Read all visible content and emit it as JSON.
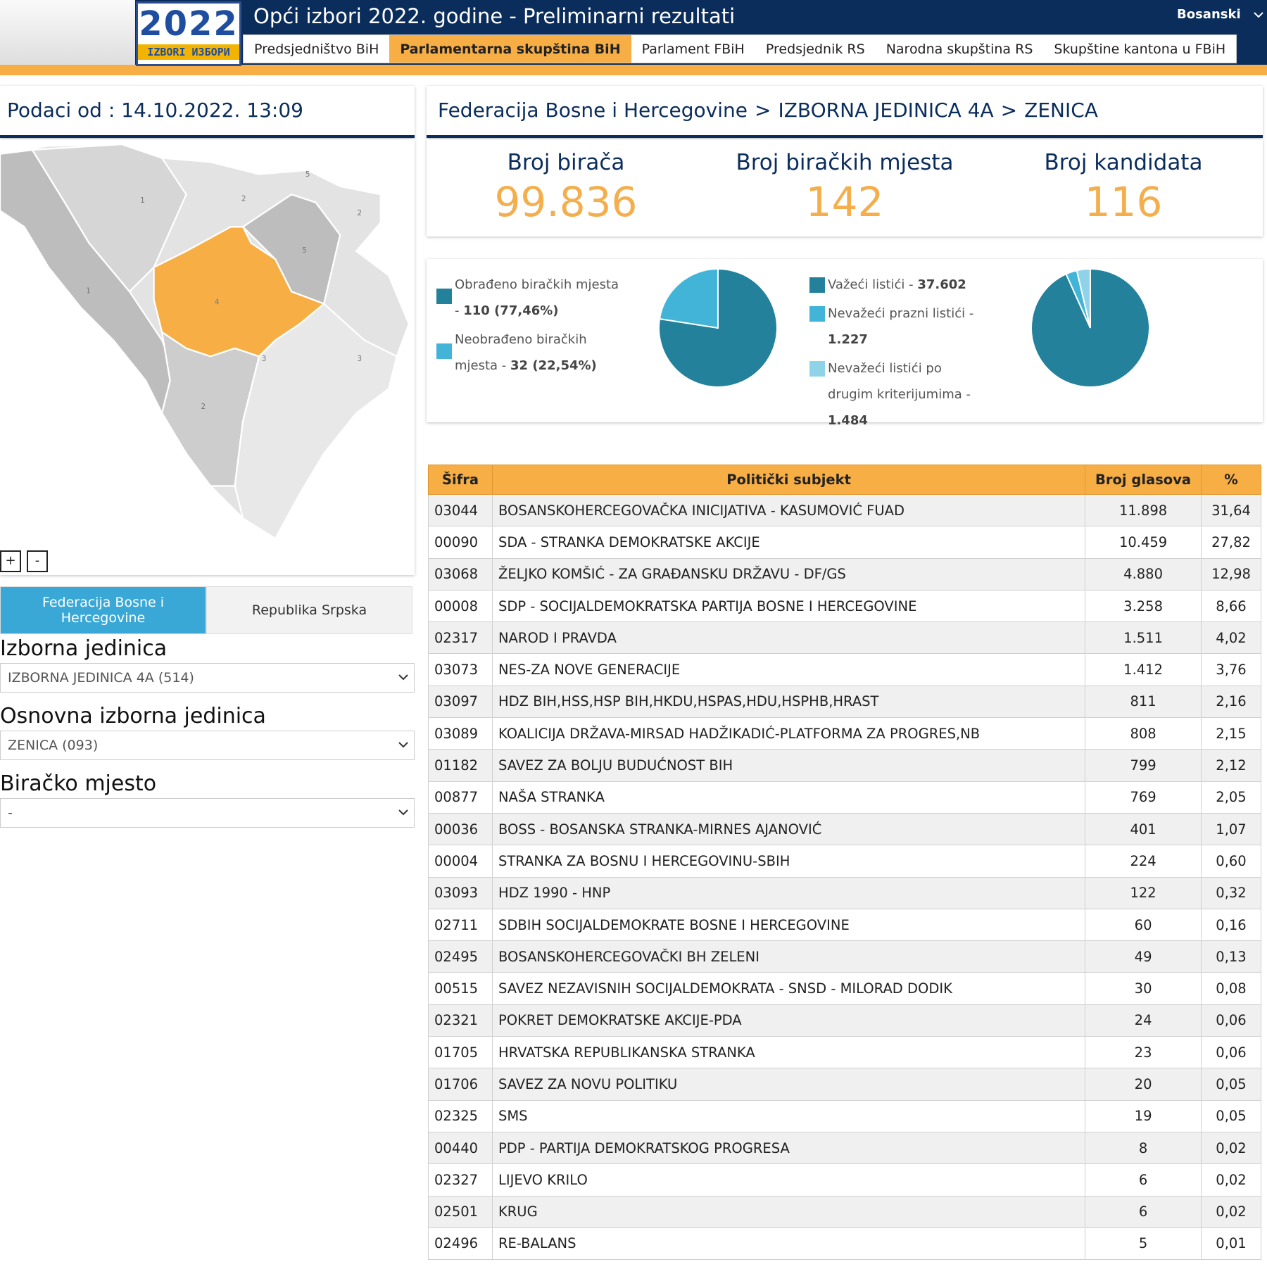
{
  "header": {
    "logo": {
      "year": "2022",
      "caption": "IZBORI ИЗБОРИ"
    },
    "title": "Opći izbori 2022. godine - Preliminarni rezultati",
    "language": "Bosanski",
    "tabs": [
      "Predsjedništvo BiH",
      "Parlamentarna skupština BiH",
      "Parlament FBiH",
      "Predsjednik RS",
      "Narodna skupština RS",
      "Skupštine kantona u FBiH"
    ],
    "active_tab": 1
  },
  "sidebar": {
    "timestamp": "Podaci od : 14.10.2022. 13:09",
    "map": {
      "labels": [
        "1",
        "2",
        "2",
        "5",
        "1",
        "4",
        "3",
        "3",
        "2",
        "5"
      ],
      "zoom_in": "+",
      "zoom_out": "-"
    },
    "entities": [
      "Federacija Bosne i Hercegovine",
      "Republika Srpska"
    ],
    "active_entity": 0,
    "filters": [
      {
        "label": "Izborna jedinica",
        "value": "IZBORNA JEDINICA 4A (514)"
      },
      {
        "label": "Osnovna izborna jedinica",
        "value": "ZENICA (093)"
      },
      {
        "label": "Biračko mjesto",
        "value": "-"
      }
    ]
  },
  "breadcrumb": {
    "items": [
      "Federacija Bosne i Hercegovine",
      "IZBORNA JEDINICA 4A",
      "ZENICA"
    ],
    "separator": ">"
  },
  "stats": [
    {
      "label": "Broj birača",
      "value": "99.836"
    },
    {
      "label": "Broj biračkih mjesta",
      "value": "142"
    },
    {
      "label": "Broj kandidata",
      "value": "116"
    }
  ],
  "chart_data": [
    {
      "type": "pie",
      "categories": [
        "Obrađeno biračkih mjesta -",
        "Neobrađeno biračkih mjesta -"
      ],
      "values": [
        110,
        32
      ],
      "value_labels": [
        "110 (77,46%)",
        "32 (22,54%)"
      ],
      "colors": [
        "#23819c",
        "#41b4d8"
      ]
    },
    {
      "type": "pie",
      "categories": [
        "Važeći listići -",
        "Nevažeći prazni listići -",
        "Nevažeći listići po drugim kriterijumima -"
      ],
      "values": [
        37602,
        1227,
        1484
      ],
      "value_labels": [
        "37.602",
        "1.227",
        "1.484"
      ],
      "colors": [
        "#23819c",
        "#41b4d8",
        "#8fd3e8"
      ]
    }
  ],
  "table": {
    "columns": [
      "Šifra",
      "Politički subjekt",
      "Broj glasova",
      "%"
    ],
    "rows": [
      [
        "03044",
        "BOSANSKOHERCEGOVAČKA INICIJATIVA - KASUMOVIĆ FUAD",
        "11.898",
        "31,64"
      ],
      [
        "00090",
        "SDA - STRANKA DEMOKRATSKE AKCIJE",
        "10.459",
        "27,82"
      ],
      [
        "03068",
        "ŽELJKO KOMŠIĆ - ZA GRAĐANSKU DRŽAVU - DF/GS",
        "4.880",
        "12,98"
      ],
      [
        "00008",
        "SDP - SOCIJALDEMOKRATSKA PARTIJA BOSNE I HERCEGOVINE",
        "3.258",
        "8,66"
      ],
      [
        "02317",
        "NAROD I PRAVDA",
        "1.511",
        "4,02"
      ],
      [
        "03073",
        "NES-ZA NOVE GENERACIJE",
        "1.412",
        "3,76"
      ],
      [
        "03097",
        "HDZ BIH,HSS,HSP BIH,HKDU,HSPAS,HDU,HSPHB,HRAST",
        "811",
        "2,16"
      ],
      [
        "03089",
        "KOALICIJA DRŽAVA-MIRSAD HADŽIKADIĆ-PLATFORMA ZA PROGRES,NB",
        "808",
        "2,15"
      ],
      [
        "01182",
        "SAVEZ ZA BOLJU BUDUĆNOST BIH",
        "799",
        "2,12"
      ],
      [
        "00877",
        "NAŠA STRANKA",
        "769",
        "2,05"
      ],
      [
        "00036",
        "BOSS - BOSANSKA STRANKA-MIRNES AJANOVIĆ",
        "401",
        "1,07"
      ],
      [
        "00004",
        "STRANKA ZA BOSNU I HERCEGOVINU-SBIH",
        "224",
        "0,60"
      ],
      [
        "03093",
        "HDZ 1990 - HNP",
        "122",
        "0,32"
      ],
      [
        "02711",
        "SDBIH SOCIJALDEMOKRATE BOSNE I HERCEGOVINE",
        "60",
        "0,16"
      ],
      [
        "02495",
        "BOSANSKOHERCEGOVAČKI BH ZELENI",
        "49",
        "0,13"
      ],
      [
        "00515",
        "SAVEZ NEZAVISNIH SOCIJALDEMOKRATA - SNSD - MILORAD DODIK",
        "30",
        "0,08"
      ],
      [
        "02321",
        "POKRET DEMOKRATSKE AKCIJE-PDA",
        "24",
        "0,06"
      ],
      [
        "01705",
        "HRVATSKA REPUBLIKANSKA STRANKA",
        "23",
        "0,06"
      ],
      [
        "01706",
        "SAVEZ ZA NOVU POLITIKU",
        "20",
        "0,05"
      ],
      [
        "02325",
        "SMS",
        "19",
        "0,05"
      ],
      [
        "00440",
        "PDP - PARTIJA DEMOKRATSKOG PROGRESA",
        "8",
        "0,02"
      ],
      [
        "02327",
        "LIJEVO KRILO",
        "6",
        "0,02"
      ],
      [
        "02501",
        "KRUG",
        "6",
        "0,02"
      ],
      [
        "02496",
        "RE-BALANS",
        "5",
        "0,01"
      ]
    ]
  }
}
